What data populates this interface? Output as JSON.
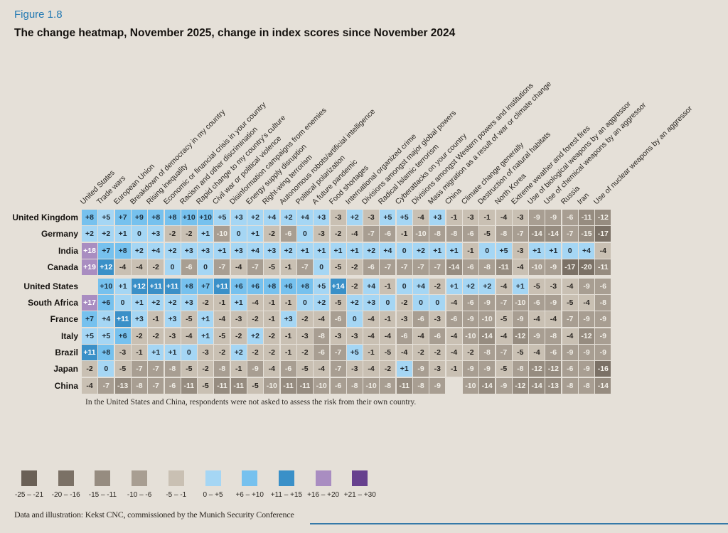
{
  "figure": {
    "label": "Figure 1.8",
    "title": "The change heatmap, November 2025, change in index scores since November 2024"
  },
  "note": "In the United States and China, respondents were not asked to assess the risk from their own country.",
  "footer": "Data and illustration: Kekst CNC, commissioned by the Munich Security Conference",
  "accent_rule_color": "#3579a8",
  "background_color": "#e5e0d8",
  "chart_data": {
    "type": "heatmap",
    "title": "The change heatmap, November 2025, change in index scores since November 2024",
    "columns": [
      "United States",
      "Trade wars",
      "European Union",
      "Breakdown of democracy in my country",
      "Rising inequality",
      "Economic or financial crisis in your country",
      "Racism and other discrimination",
      "Rapid change to my country's culture",
      "Civil war or political violence",
      "Disinformation campaigns from enemies",
      "Energy supply disruption",
      "Right-wing terrorism",
      "Autonomous robots/artificial intelligence",
      "Political polarization",
      "A future pandemic",
      "Food shortages",
      "International organized crime",
      "Divisions amongst major global powers",
      "Radical Islamic terrorism",
      "Cyberattacks on your country",
      "Divisions amongst Western powers and institutions",
      "Mass migration as a result of war or climate change",
      "China",
      "Climate change generally",
      "Destruction of natural habitats",
      "North Korea",
      "Extreme weather and forest fires",
      "Use of biological weapons by an aggressor",
      "Use of chemical weapons by an aggressor",
      "Russia",
      "Iran",
      "Use of nuclear weapons by an aggressor"
    ],
    "rows": [
      {
        "country": "United Kingdom",
        "values": [
          8,
          5,
          7,
          9,
          8,
          8,
          10,
          10,
          5,
          3,
          2,
          4,
          2,
          4,
          3,
          -3,
          2,
          -3,
          5,
          5,
          -4,
          3,
          -1,
          -3,
          -1,
          -4,
          -3,
          -9,
          -9,
          -6,
          -11,
          -12
        ]
      },
      {
        "country": "Germany",
        "values": [
          2,
          2,
          1,
          0,
          3,
          -2,
          -2,
          1,
          -10,
          0,
          1,
          -2,
          -6,
          0,
          -3,
          -2,
          -4,
          -7,
          -6,
          -1,
          -10,
          -8,
          -8,
          -6,
          -5,
          -8,
          -7,
          -14,
          -14,
          -7,
          -15,
          -17
        ]
      },
      {
        "country": "India",
        "values": [
          18,
          7,
          8,
          2,
          4,
          2,
          3,
          3,
          1,
          3,
          4,
          3,
          2,
          1,
          1,
          1,
          1,
          2,
          4,
          0,
          2,
          1,
          1,
          -1,
          0,
          5,
          -3,
          1,
          1,
          0,
          4,
          -4
        ]
      },
      {
        "country": "Canada",
        "values": [
          19,
          12,
          -4,
          -4,
          -2,
          0,
          -6,
          0,
          -7,
          -4,
          -7,
          -5,
          -1,
          -7,
          0,
          -5,
          -2,
          -6,
          -7,
          -7,
          -7,
          -7,
          -14,
          -6,
          -8,
          -11,
          -4,
          -10,
          -9,
          -17,
          -20,
          -11
        ]
      },
      {
        "country": "United States",
        "values": [
          null,
          10,
          1,
          12,
          11,
          11,
          8,
          7,
          11,
          6,
          6,
          8,
          6,
          8,
          5,
          14,
          -2,
          4,
          -1,
          0,
          4,
          -2,
          1,
          2,
          2,
          -4,
          1,
          -5,
          -3,
          -4,
          -9,
          -6
        ]
      },
      {
        "country": "South Africa",
        "values": [
          17,
          6,
          0,
          1,
          2,
          2,
          3,
          -2,
          -1,
          1,
          -4,
          -1,
          -1,
          0,
          2,
          -5,
          2,
          3,
          0,
          -2,
          0,
          0,
          -4,
          -6,
          -9,
          -7,
          -10,
          -6,
          -9,
          -5,
          -4,
          -8
        ]
      },
      {
        "country": "France",
        "values": [
          7,
          4,
          11,
          3,
          -1,
          3,
          -5,
          1,
          -4,
          -3,
          -2,
          -1,
          3,
          -2,
          -4,
          -6,
          0,
          -4,
          -1,
          -3,
          -6,
          -3,
          -6,
          -9,
          -10,
          -5,
          -9,
          -4,
          -4,
          -7,
          -9,
          -9
        ]
      },
      {
        "country": "Italy",
        "values": [
          5,
          5,
          6,
          -2,
          -2,
          -3,
          -4,
          1,
          -5,
          -2,
          2,
          -2,
          -1,
          -3,
          -8,
          -3,
          -3,
          -4,
          -4,
          -6,
          -4,
          -6,
          -4,
          -10,
          -14,
          -4,
          -12,
          -9,
          -8,
          -4,
          -12,
          -9
        ]
      },
      {
        "country": "Brazil",
        "values": [
          11,
          8,
          -3,
          -1,
          1,
          1,
          0,
          -3,
          -2,
          2,
          -2,
          -2,
          -1,
          -2,
          -6,
          -7,
          5,
          -1,
          -5,
          -4,
          -2,
          -2,
          -4,
          -2,
          -8,
          -7,
          -5,
          -4,
          -6,
          -9,
          -9,
          -9
        ]
      },
      {
        "country": "Japan",
        "values": [
          -2,
          0,
          -5,
          -7,
          -7,
          -8,
          -5,
          -2,
          -8,
          -1,
          -9,
          -4,
          -6,
          -5,
          -4,
          -7,
          -3,
          -4,
          -2,
          1,
          -9,
          -3,
          -1,
          -9,
          -9,
          -5,
          -8,
          -12,
          -12,
          -6,
          -9,
          -16
        ]
      },
      {
        "country": "China",
        "values": [
          -4,
          -7,
          -13,
          -8,
          -7,
          -6,
          -11,
          -5,
          -11,
          -11,
          -5,
          -10,
          -11,
          -11,
          -10,
          -6,
          -8,
          -10,
          -8,
          -11,
          -8,
          -9,
          null,
          -10,
          -14,
          -9,
          -12,
          -14,
          -13,
          -8,
          -8,
          -14
        ]
      }
    ],
    "legend": [
      {
        "label": "-25 – -21",
        "color": "#6a6056",
        "text_color": "#f4f1ea"
      },
      {
        "label": "-20 – -16",
        "color": "#7b7166",
        "text_color": "#f4f1ea"
      },
      {
        "label": "-15 – -11",
        "color": "#968c80",
        "text_color": "#f4f1ea"
      },
      {
        "label": "-10 – -6",
        "color": "#a89e92",
        "text_color": "#f1eee7"
      },
      {
        "label": "-5 – -1",
        "color": "#c9c0b3",
        "text_color": "#2a2622"
      },
      {
        "label": "0 – +5",
        "color": "#a5d6f4",
        "text_color": "#222e38"
      },
      {
        "label": "+6 – +10",
        "color": "#76c1ee",
        "text_color": "#1c2f3e"
      },
      {
        "label": "+11 – +15",
        "color": "#3a90c8",
        "text_color": "#ffffff"
      },
      {
        "label": "+16 – +20",
        "color": "#a98dc1",
        "text_color": "#ffffff"
      },
      {
        "label": "+21 – +30",
        "color": "#67418e",
        "text_color": "#ffffff"
      }
    ],
    "legend_position": "bottom",
    "value_range": [
      -30,
      30
    ]
  }
}
